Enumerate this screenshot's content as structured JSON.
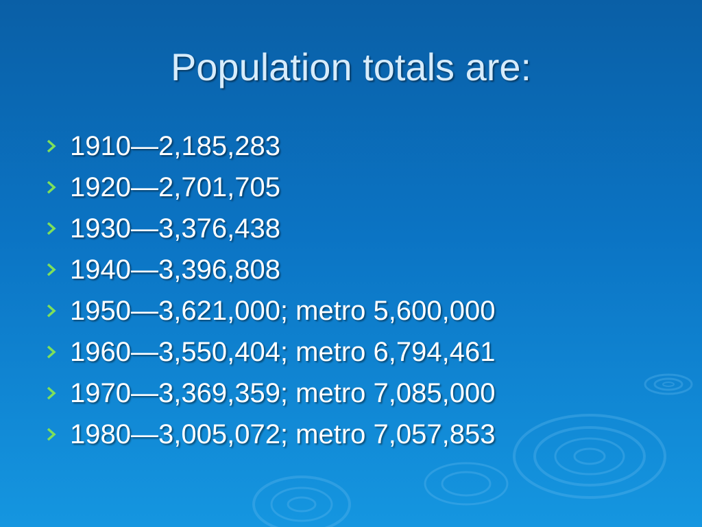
{
  "slide": {
    "title": "Population totals are:",
    "bullet_icon": "chevron-right-icon",
    "bullet_color": "#7fe05a",
    "background_color": "#0b6fbe",
    "items": [
      "1910—2,185,283",
      "1920—2,701,705",
      "1930—3,376,438",
      "1940—3,396,808",
      "1950—3,621,000; metro 5,600,000",
      "1960—3,550,404; metro 6,794,461",
      "1970—3,369,359; metro 7,085,000",
      "1980—3,005,072; metro 7,057,853"
    ]
  }
}
